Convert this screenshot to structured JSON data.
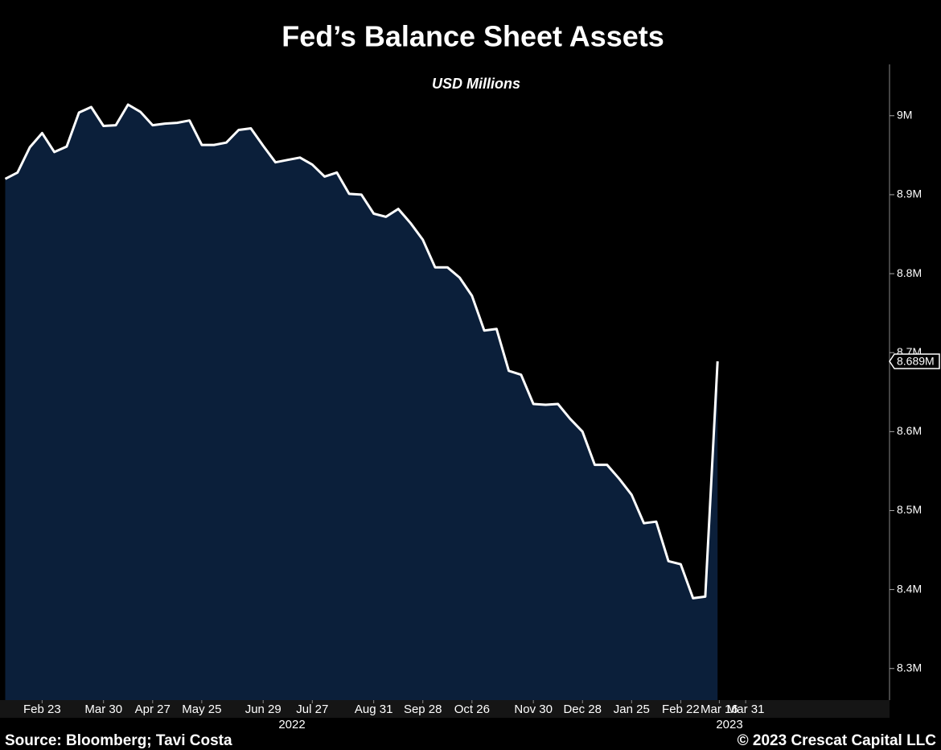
{
  "chart_data": {
    "type": "area",
    "title": "Fed’s Balance Sheet Assets",
    "subtitle": "USD Millions",
    "source": "Source: Bloomberg; Tavi Costa",
    "copyright": "© 2023 Crescat Capital LLC",
    "years": [
      "2022",
      "2023"
    ],
    "color": "#0b1f3a",
    "line_color": "#ffffff",
    "x": [
      "2022-02-02",
      "2022-02-09",
      "2022-02-16",
      "2022-02-23",
      "2022-03-02",
      "2022-03-09",
      "2022-03-16",
      "2022-03-23",
      "2022-03-30",
      "2022-04-06",
      "2022-04-13",
      "2022-04-20",
      "2022-04-27",
      "2022-05-04",
      "2022-05-11",
      "2022-05-18",
      "2022-05-25",
      "2022-06-01",
      "2022-06-08",
      "2022-06-15",
      "2022-06-22",
      "2022-06-29",
      "2022-07-06",
      "2022-07-13",
      "2022-07-20",
      "2022-07-27",
      "2022-08-03",
      "2022-08-10",
      "2022-08-17",
      "2022-08-24",
      "2022-08-31",
      "2022-09-07",
      "2022-09-14",
      "2022-09-21",
      "2022-09-28",
      "2022-10-05",
      "2022-10-12",
      "2022-10-19",
      "2022-10-26",
      "2022-11-02",
      "2022-11-09",
      "2022-11-16",
      "2022-11-23",
      "2022-11-30",
      "2022-12-07",
      "2022-12-14",
      "2022-12-21",
      "2022-12-28",
      "2023-01-04",
      "2023-01-11",
      "2023-01-18",
      "2023-01-25",
      "2023-02-01",
      "2023-02-08",
      "2023-02-15",
      "2023-02-22",
      "2023-03-01",
      "2023-03-08",
      "2023-03-15"
    ],
    "values": [
      8920000,
      8928000,
      8960000,
      8978000,
      8954000,
      8961000,
      9004000,
      9011000,
      8987000,
      8988000,
      9014000,
      9005000,
      8988000,
      8990000,
      8991000,
      8994000,
      8963000,
      8963000,
      8966000,
      8982000,
      8984000,
      8962000,
      8941000,
      8944000,
      8947000,
      8938000,
      8923000,
      8928000,
      8901000,
      8900000,
      8876000,
      8872000,
      8882000,
      8864000,
      8843000,
      8808000,
      8808000,
      8795000,
      8772000,
      8728000,
      8730000,
      8677000,
      8672000,
      8635000,
      8634000,
      8635000,
      8616000,
      8600000,
      8558000,
      8558000,
      8540000,
      8520000,
      8484000,
      8486000,
      8436000,
      8432000,
      8389000,
      8391000,
      8689000
    ],
    "value_labels": [
      null,
      null,
      null,
      null,
      null,
      null,
      null,
      null,
      null,
      null,
      null,
      null,
      null,
      null,
      null,
      null,
      null,
      null,
      null,
      null,
      null,
      null,
      null,
      null,
      null,
      null,
      null,
      null,
      null,
      null,
      null,
      null,
      null,
      null,
      null,
      null,
      null,
      null,
      null,
      null,
      null,
      null,
      null,
      null,
      null,
      null,
      null,
      null,
      null,
      null,
      null,
      null,
      null,
      null,
      null,
      null,
      null,
      null,
      "8.689M"
    ],
    "xlim": [
      "2022-01-30",
      "2023-06-21"
    ],
    "xticks": [
      {
        "value": "2022-02-23",
        "label": "Feb 23"
      },
      {
        "value": "2022-03-30",
        "label": "Mar 30"
      },
      {
        "value": "2022-04-27",
        "label": "Apr 27"
      },
      {
        "value": "2022-05-25",
        "label": "May 25"
      },
      {
        "value": "2022-06-29",
        "label": "Jun 29"
      },
      {
        "value": "2022-07-27",
        "label": "Jul 27"
      },
      {
        "value": "2022-08-31",
        "label": "Aug 31"
      },
      {
        "value": "2022-09-28",
        "label": "Sep 28"
      },
      {
        "value": "2022-10-26",
        "label": "Oct 26"
      },
      {
        "value": "2022-11-30",
        "label": "Nov 30"
      },
      {
        "value": "2022-12-28",
        "label": "Dec 28"
      },
      {
        "value": "2023-01-25",
        "label": "Jan 25"
      },
      {
        "value": "2023-02-22",
        "label": "Feb 22"
      },
      {
        "value": "2023-03-16",
        "label": "Mar 16"
      },
      {
        "value": "2023-03-31",
        "label": "Mar 31"
      }
    ],
    "ylim": [
      8260000,
      9065000
    ],
    "yticks": [
      {
        "value": 8300000,
        "label": "8.3M"
      },
      {
        "value": 8400000,
        "label": "8.4M"
      },
      {
        "value": 8500000,
        "label": "8.5M"
      },
      {
        "value": 8600000,
        "label": "8.6M"
      },
      {
        "value": 8700000,
        "label": "8.7M"
      },
      {
        "value": 8800000,
        "label": "8.8M"
      },
      {
        "value": 8900000,
        "label": "8.9M"
      },
      {
        "value": 9000000,
        "label": "9M"
      }
    ]
  }
}
